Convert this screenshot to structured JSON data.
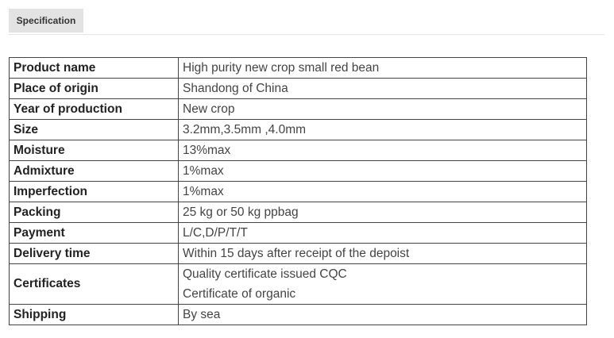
{
  "tabs": [
    {
      "label": "Specification",
      "active": true
    }
  ],
  "spec_table": [
    {
      "key": "Product name",
      "value": [
        "High purity new crop small red bean"
      ]
    },
    {
      "key": "Place of origin",
      "value": [
        "Shandong of China"
      ]
    },
    {
      "key": "Year of production",
      "value": [
        "New crop"
      ]
    },
    {
      "key": "Size",
      "value": [
        "3.2mm,3.5mm ,4.0mm"
      ]
    },
    {
      "key": "Moisture",
      "value": [
        "13%max"
      ]
    },
    {
      "key": "Admixture",
      "value": [
        "1%max"
      ]
    },
    {
      "key": "Imperfection",
      "value": [
        "1%max"
      ]
    },
    {
      "key": "Packing",
      "value": [
        "25 kg or 50 kg ppbag"
      ]
    },
    {
      "key": "Payment",
      "value": [
        "L/C,D/P/T/T"
      ]
    },
    {
      "key": "Delivery time",
      "value": [
        "Within 15 days after receipt of the depoist"
      ]
    },
    {
      "key": "Certificates",
      "value": [
        "Quality certificate issued CQC",
        "Certificate of organic"
      ]
    },
    {
      "key": "Shipping",
      "value": [
        "By sea"
      ]
    }
  ]
}
